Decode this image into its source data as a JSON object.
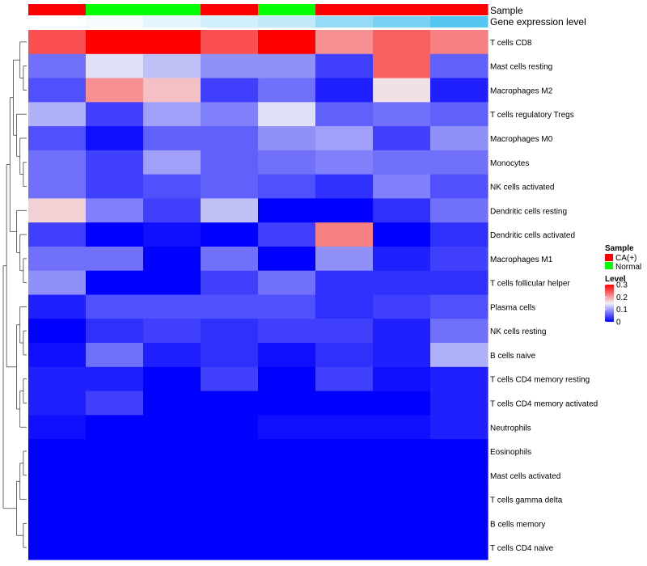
{
  "chart_data": {
    "type": "heatmap",
    "annotation_tracks": [
      {
        "name": "Sample",
        "values": [
          "CA(+)",
          "Normal",
          "Normal",
          "CA(+)",
          "Normal",
          "CA(+)",
          "CA(+)",
          "CA(+)"
        ]
      },
      {
        "name": "Gene expression level",
        "values": [
          0.0,
          0.05,
          0.15,
          0.25,
          0.35,
          0.6,
          0.75,
          0.95
        ]
      }
    ],
    "rows": [
      "T cells CD8",
      "Mast cells resting",
      "Macrophages M2",
      "T cells regulatory  Tregs",
      "Macrophages M0",
      "Monocytes",
      "NK cells activated",
      "Dendritic cells resting",
      "Dendritic cells activated",
      "Macrophages M1",
      "T cells follicular helper",
      "Plasma cells",
      "NK cells resting",
      "B cells naive",
      "T cells CD4 memory resting",
      "T cells CD4 memory activated",
      "Neutrophils",
      "Eosinophils",
      "Mast cells activated",
      "T cells gamma delta",
      "B cells memory",
      "T cells CD4 naive"
    ],
    "values": [
      [
        0.25,
        0.3,
        0.3,
        0.25,
        0.3,
        0.21,
        0.24,
        0.22
      ],
      [
        0.07,
        0.14,
        0.12,
        0.09,
        0.09,
        0.04,
        0.24,
        0.06
      ],
      [
        0.05,
        0.21,
        0.18,
        0.04,
        0.07,
        0.02,
        0.16,
        0.02
      ],
      [
        0.11,
        0.04,
        0.1,
        0.08,
        0.14,
        0.06,
        0.07,
        0.06
      ],
      [
        0.05,
        0.01,
        0.06,
        0.06,
        0.09,
        0.1,
        0.04,
        0.09
      ],
      [
        0.07,
        0.04,
        0.1,
        0.06,
        0.07,
        0.08,
        0.07,
        0.07
      ],
      [
        0.07,
        0.04,
        0.05,
        0.06,
        0.05,
        0.03,
        0.08,
        0.05
      ],
      [
        0.17,
        0.08,
        0.04,
        0.12,
        0.0,
        0.0,
        0.03,
        0.07
      ],
      [
        0.04,
        0.0,
        0.01,
        0.0,
        0.04,
        0.22,
        0.0,
        0.03
      ],
      [
        0.07,
        0.07,
        0.0,
        0.07,
        0.0,
        0.09,
        0.02,
        0.04
      ],
      [
        0.09,
        0.0,
        0.0,
        0.04,
        0.07,
        0.03,
        0.03,
        0.03
      ],
      [
        0.02,
        0.05,
        0.05,
        0.05,
        0.05,
        0.03,
        0.04,
        0.05
      ],
      [
        0.0,
        0.03,
        0.04,
        0.03,
        0.04,
        0.04,
        0.02,
        0.07
      ],
      [
        0.01,
        0.07,
        0.02,
        0.03,
        0.01,
        0.03,
        0.02,
        0.11
      ],
      [
        0.02,
        0.02,
        0.0,
        0.04,
        0.0,
        0.04,
        0.01,
        0.02
      ],
      [
        0.02,
        0.04,
        0.0,
        0.0,
        0.0,
        0.0,
        0.0,
        0.02
      ],
      [
        0.01,
        0.0,
        0.0,
        0.0,
        0.01,
        0.01,
        0.01,
        0.02
      ],
      [
        0.0,
        0.0,
        0.0,
        0.0,
        0.0,
        0.0,
        0.0,
        0.0
      ],
      [
        0.0,
        0.0,
        0.0,
        0.0,
        0.0,
        0.0,
        0.0,
        0.0
      ],
      [
        0.0,
        0.0,
        0.0,
        0.0,
        0.0,
        0.0,
        0.0,
        0.0
      ],
      [
        0.0,
        0.0,
        0.0,
        0.0,
        0.0,
        0.0,
        0.0,
        0.0
      ],
      [
        0.0,
        0.0,
        0.0,
        0.0,
        0.0,
        0.0,
        0.0,
        0.0
      ]
    ],
    "color_scale": {
      "min": 0,
      "max": 0.3,
      "low": "#0000ff",
      "mid": "#f0f0f5",
      "high": "#ff0000"
    },
    "dendrogram": "rows-clustered",
    "legend": {
      "sample_title": "Sample",
      "sample_entries": [
        {
          "label": "CA(+)",
          "color": "#ff0000"
        },
        {
          "label": "Normal",
          "color": "#00ff00"
        }
      ],
      "level_title": "Level",
      "level_ticks": [
        "0.3",
        "0.2",
        "0.1",
        "0"
      ],
      "level_tick_values": [
        0.3,
        0.2,
        0.1,
        0
      ],
      "placement": "right"
    },
    "sample_colors": {
      "CA(+)": "#ff0000",
      "Normal": "#00ff00"
    },
    "expression_colors": {
      "low": "#ffffff",
      "high": "#4cc3f0"
    }
  }
}
